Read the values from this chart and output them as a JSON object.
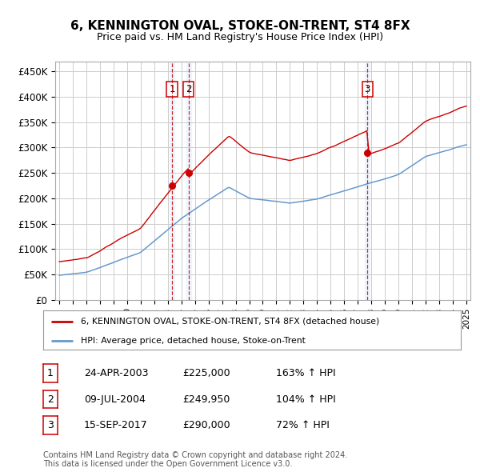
{
  "title": "6, KENNINGTON OVAL, STOKE-ON-TRENT, ST4 8FX",
  "subtitle": "Price paid vs. HM Land Registry's House Price Index (HPI)",
  "ylim": [
    0,
    470000
  ],
  "yticks": [
    0,
    50000,
    100000,
    150000,
    200000,
    250000,
    300000,
    350000,
    400000,
    450000
  ],
  "ytick_labels": [
    "£0",
    "£50K",
    "£100K",
    "£150K",
    "£200K",
    "£250K",
    "£300K",
    "£350K",
    "£400K",
    "£450K"
  ],
  "xlim_start": 1994.7,
  "xlim_end": 2025.3,
  "transaction_color": "#cc0000",
  "hpi_color": "#6699cc",
  "background_color": "#ffffff",
  "grid_color": "#cccccc",
  "transactions": [
    {
      "label": "1",
      "date": "24-APR-2003",
      "price": 225000,
      "year": 2003.31
    },
    {
      "label": "2",
      "date": "09-JUL-2004",
      "price": 249950,
      "year": 2004.53
    },
    {
      "label": "3",
      "date": "15-SEP-2017",
      "price": 290000,
      "year": 2017.71
    }
  ],
  "legend_label_red": "6, KENNINGTON OVAL, STOKE-ON-TRENT, ST4 8FX (detached house)",
  "legend_label_blue": "HPI: Average price, detached house, Stoke-on-Trent",
  "footnote": "Contains HM Land Registry data © Crown copyright and database right 2024.\nThis data is licensed under the Open Government Licence v3.0.",
  "table_rows": [
    [
      "1",
      "24-APR-2003",
      "£225,000",
      "163% ↑ HPI"
    ],
    [
      "2",
      "09-JUL-2004",
      "£249,950",
      "104% ↑ HPI"
    ],
    [
      "3",
      "15-SEP-2017",
      "£290,000",
      "72% ↑ HPI"
    ]
  ]
}
